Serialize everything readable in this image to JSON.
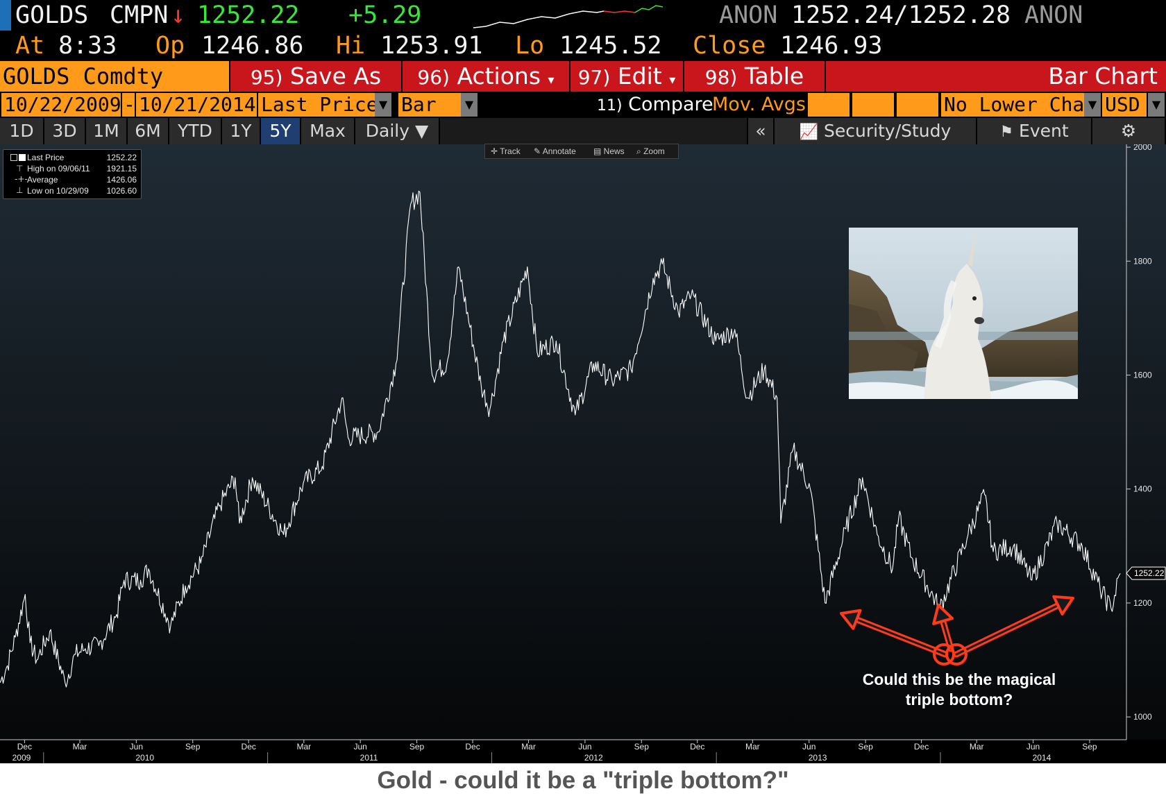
{
  "ticker": {
    "security": "GOLDS",
    "source": "CMPN",
    "arrow": "↓",
    "last": "1252.22",
    "change": "+5.29",
    "contributor_left": "ANON",
    "bid_ask": "1252.24/1252.28",
    "contributor_right": "ANON",
    "at_label": "At",
    "at_value": "8:33",
    "op_label": "Op",
    "op_value": "1246.86",
    "hi_label": "Hi",
    "hi_value": "1253.91",
    "lo_label": "Lo",
    "lo_value": "1245.52",
    "close_label": "Close",
    "close_value": "1246.93"
  },
  "command_bar": {
    "security_field": "GOLDS Comdty",
    "buttons": [
      {
        "num": "95)",
        "label": "Save As"
      },
      {
        "num": "96)",
        "label": "Actions",
        "dropdown": true
      },
      {
        "num": "97)",
        "label": "Edit",
        "dropdown": true
      },
      {
        "num": "98)",
        "label": "Table"
      }
    ],
    "title": "Bar Chart"
  },
  "settings_bar": {
    "start_date": "10/22/2009",
    "separator": "-",
    "end_date": "10/21/2014",
    "field": "Last Price",
    "chart_style": "Bar",
    "compare_num": "11)",
    "compare_label": "Compare",
    "mov_avgs": "Mov. Avgs",
    "lower_chart": "No Lower Chart",
    "currency": "USD"
  },
  "tabs": {
    "periods": [
      "1D",
      "3D",
      "1M",
      "6M",
      "YTD",
      "1Y",
      "5Y",
      "Max"
    ],
    "active": "5Y",
    "frequency": "Daily",
    "collapse": "«",
    "security_study": "Security/Study",
    "event": "Event"
  },
  "toolbar": {
    "track": "Track",
    "annotate": "Annotate",
    "news": "News",
    "zoom": "Zoom"
  },
  "legend": [
    {
      "label": "Last Price",
      "value": "1252.22"
    },
    {
      "label": "High on 09/06/11",
      "value": "1921.15"
    },
    {
      "label": "Average",
      "value": "1426.06"
    },
    {
      "label": "Low on 10/29/09",
      "value": "1026.60"
    }
  ],
  "annotation": {
    "line1": "Could this be the magical",
    "line2": "triple bottom?",
    "arrow_color": "#ff3b1a"
  },
  "caption": "Gold - could it be a \"triple bottom?\"",
  "colors": {
    "orange": "#ff9a1a",
    "red": "#c9161d",
    "green": "#39e639",
    "active_tab": "#1f3f73"
  },
  "chart_data": {
    "type": "line",
    "series": [
      {
        "values": [
          [
            "2009-10-22",
            1060
          ],
          [
            "2009-11-03",
            1090
          ],
          [
            "2009-11-16",
            1140
          ],
          [
            "2009-12-02",
            1215
          ],
          [
            "2009-12-10",
            1130
          ],
          [
            "2009-12-21",
            1100
          ],
          [
            "2010-01-11",
            1150
          ],
          [
            "2010-02-05",
            1060
          ],
          [
            "2010-02-22",
            1110
          ],
          [
            "2010-03-10",
            1120
          ],
          [
            "2010-04-01",
            1125
          ],
          [
            "2010-04-30",
            1180
          ],
          [
            "2010-05-12",
            1240
          ],
          [
            "2010-06-08",
            1240
          ],
          [
            "2010-06-21",
            1260
          ],
          [
            "2010-07-27",
            1160
          ],
          [
            "2010-08-20",
            1230
          ],
          [
            "2010-09-14",
            1270
          ],
          [
            "2010-10-14",
            1370
          ],
          [
            "2010-11-09",
            1420
          ],
          [
            "2010-11-16",
            1340
          ],
          [
            "2010-12-07",
            1420
          ],
          [
            "2011-01-27",
            1320
          ],
          [
            "2011-02-28",
            1410
          ],
          [
            "2011-03-31",
            1440
          ],
          [
            "2011-05-02",
            1560
          ],
          [
            "2011-05-12",
            1490
          ],
          [
            "2011-06-30",
            1500
          ],
          [
            "2011-07-29",
            1620
          ],
          [
            "2011-08-22",
            1900
          ],
          [
            "2011-09-06",
            1921
          ],
          [
            "2011-09-26",
            1600
          ],
          [
            "2011-10-20",
            1620
          ],
          [
            "2011-11-08",
            1790
          ],
          [
            "2011-12-15",
            1580
          ],
          [
            "2011-12-29",
            1540
          ],
          [
            "2012-01-20",
            1660
          ],
          [
            "2012-02-28",
            1790
          ],
          [
            "2012-03-15",
            1640
          ],
          [
            "2012-04-15",
            1660
          ],
          [
            "2012-05-16",
            1530
          ],
          [
            "2012-06-15",
            1620
          ],
          [
            "2012-07-15",
            1590
          ],
          [
            "2012-08-15",
            1610
          ],
          [
            "2012-09-20",
            1770
          ],
          [
            "2012-10-05",
            1795
          ],
          [
            "2012-10-31",
            1710
          ],
          [
            "2012-11-21",
            1740
          ],
          [
            "2012-12-31",
            1660
          ],
          [
            "2013-01-31",
            1680
          ],
          [
            "2013-02-20",
            1560
          ],
          [
            "2013-03-20",
            1610
          ],
          [
            "2013-04-10",
            1560
          ],
          [
            "2013-04-16",
            1340
          ],
          [
            "2013-05-06",
            1470
          ],
          [
            "2013-06-03",
            1400
          ],
          [
            "2013-06-27",
            1200
          ],
          [
            "2013-07-31",
            1330
          ],
          [
            "2013-08-27",
            1420
          ],
          [
            "2013-09-20",
            1320
          ],
          [
            "2013-10-15",
            1260
          ],
          [
            "2013-10-25",
            1350
          ],
          [
            "2013-11-15",
            1280
          ],
          [
            "2013-12-31",
            1190
          ],
          [
            "2014-02-15",
            1320
          ],
          [
            "2014-03-14",
            1390
          ],
          [
            "2014-03-28",
            1290
          ],
          [
            "2014-04-30",
            1300
          ],
          [
            "2014-05-30",
            1240
          ],
          [
            "2014-07-10",
            1340
          ],
          [
            "2014-08-20",
            1300
          ],
          [
            "2014-09-18",
            1225
          ],
          [
            "2014-10-06",
            1190
          ],
          [
            "2014-10-21",
            1252
          ]
        ]
      }
    ],
    "y_ticks": [
      1000,
      1200,
      1400,
      1600,
      1800,
      2000
    ],
    "y_range": [
      960,
      2005
    ],
    "x_range": [
      "2009-10-22",
      "2014-10-31"
    ],
    "x_month_ticks": [
      {
        "label": "Dec",
        "date": "2009-12-01"
      },
      {
        "label": "Mar",
        "date": "2010-03-01"
      },
      {
        "label": "Jun",
        "date": "2010-06-01"
      },
      {
        "label": "Sep",
        "date": "2010-09-01"
      },
      {
        "label": "Dec",
        "date": "2010-12-01"
      },
      {
        "label": "Mar",
        "date": "2011-03-01"
      },
      {
        "label": "Jun",
        "date": "2011-06-01"
      },
      {
        "label": "Sep",
        "date": "2011-09-01"
      },
      {
        "label": "Dec",
        "date": "2011-12-01"
      },
      {
        "label": "Mar",
        "date": "2012-03-01"
      },
      {
        "label": "Jun",
        "date": "2012-06-01"
      },
      {
        "label": "Sep",
        "date": "2012-09-01"
      },
      {
        "label": "Dec",
        "date": "2012-12-01"
      },
      {
        "label": "Mar",
        "date": "2013-03-01"
      },
      {
        "label": "Jun",
        "date": "2013-06-01"
      },
      {
        "label": "Sep",
        "date": "2013-09-01"
      },
      {
        "label": "Dec",
        "date": "2013-12-01"
      },
      {
        "label": "Mar",
        "date": "2014-03-01"
      },
      {
        "label": "Jun",
        "date": "2014-06-01"
      },
      {
        "label": "Sep",
        "date": "2014-09-01"
      }
    ],
    "x_year_labels": [
      {
        "label": "2009",
        "date": "2009-11-26"
      },
      {
        "label": "2010",
        "date": "2010-06-15"
      },
      {
        "label": "2011",
        "date": "2011-06-15"
      },
      {
        "label": "2012",
        "date": "2012-06-15"
      },
      {
        "label": "2013",
        "date": "2013-06-15"
      },
      {
        "label": "2014",
        "date": "2014-06-15"
      }
    ],
    "year_dividers": [
      "2010-01-01",
      "2011-01-01",
      "2012-01-01",
      "2013-01-01",
      "2014-01-01"
    ],
    "last_price_marker": "1252.22",
    "grid": false,
    "legend_position": "top-left",
    "line_color": "#ffffff",
    "background": "dark gradient"
  }
}
